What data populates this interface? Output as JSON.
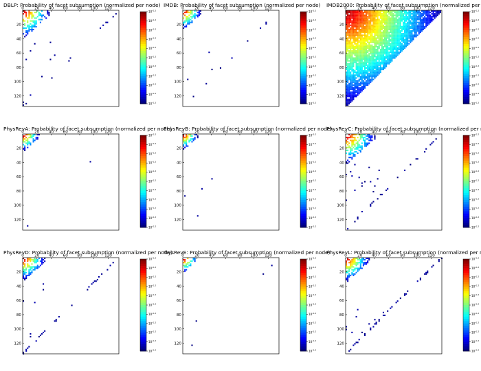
{
  "chart_data": [
    {
      "type": "heatmap",
      "title": "DBLP: Probability of facet subsumption (normalized per node)",
      "x_ticks": [
        "0",
        "20",
        "40",
        "60",
        "80",
        "100",
        "120"
      ],
      "y_ticks": [
        "20",
        "40",
        "60",
        "80",
        "100",
        "120"
      ],
      "xlim": [
        0,
        135
      ],
      "ylim": [
        0,
        135
      ],
      "colorbar": {
        "scale": "log",
        "colormap": "jet",
        "tick_exponent": "-0.2"
      },
      "extent": 37,
      "density": 0.45,
      "scatter": 0.02
    },
    {
      "type": "heatmap",
      "title": "IMDB: Probability of facet subsumption (normalized per node)",
      "x_ticks": [
        "0",
        "20",
        "40",
        "60",
        "80",
        "100",
        "120"
      ],
      "y_ticks": [
        "20",
        "40",
        "60",
        "80",
        "100",
        "120"
      ],
      "xlim": [
        0,
        135
      ],
      "ylim": [
        0,
        135
      ],
      "colorbar": {
        "scale": "log",
        "colormap": "jet",
        "tick_exponent": "-0.2"
      },
      "extent": 25,
      "density": 0.55,
      "scatter": 0.01
    },
    {
      "type": "heatmap",
      "title": "IMDB2000: Probability of facet subsumption (normalized per node)",
      "x_ticks": [
        "0",
        "20",
        "40",
        "60",
        "80",
        "100",
        "120"
      ],
      "y_ticks": [
        "20",
        "40",
        "60",
        "80",
        "100",
        "120"
      ],
      "xlim": [
        0,
        135
      ],
      "ylim": [
        0,
        135
      ],
      "colorbar": {
        "scale": "log",
        "colormap": "jet",
        "tick_exponent": "-0.2"
      },
      "extent": 133,
      "density": 0.92,
      "scatter": 0.0
    },
    {
      "type": "heatmap",
      "title": "PhysRevA: Probability of facet subsumption (normalized per node)",
      "x_ticks": [
        "0",
        "20",
        "40",
        "60",
        "80",
        "100",
        "120"
      ],
      "y_ticks": [
        "20",
        "40",
        "60",
        "80",
        "100",
        "120"
      ],
      "xlim": [
        0,
        135
      ],
      "ylim": [
        0,
        135
      ],
      "colorbar": {
        "scale": "log",
        "colormap": "jet",
        "tick_exponent": "-0.2"
      },
      "extent": 22,
      "density": 0.6,
      "scatter": 0.005
    },
    {
      "type": "heatmap",
      "title": "PhysRevB: Probability of facet subsumption (normalized per node)",
      "x_ticks": [
        "0",
        "20",
        "40",
        "60",
        "80",
        "100",
        "120"
      ],
      "y_ticks": [
        "20",
        "40",
        "60",
        "80",
        "100",
        "120"
      ],
      "xlim": [
        0,
        135
      ],
      "ylim": [
        0,
        135
      ],
      "colorbar": {
        "scale": "log",
        "colormap": "jet",
        "tick_exponent": "-0.2"
      },
      "extent": 20,
      "density": 0.55,
      "scatter": 0.005
    },
    {
      "type": "heatmap",
      "title": "PhysRevC: Probability of facet subsumption (normalized per node)",
      "x_ticks": [
        "0",
        "20",
        "40",
        "60",
        "80",
        "100",
        "120"
      ],
      "y_ticks": [
        "20",
        "40",
        "60",
        "80",
        "100",
        "120"
      ],
      "xlim": [
        0,
        135
      ],
      "ylim": [
        0,
        135
      ],
      "colorbar": {
        "scale": "log",
        "colormap": "jet",
        "tick_exponent": "-0.2"
      },
      "extent": 40,
      "density": 0.55,
      "scatter": 0.03
    },
    {
      "type": "heatmap",
      "title": "PhysRevD: Probability of facet subsumption (normalized per node)",
      "x_ticks": [
        "0",
        "20",
        "40",
        "60",
        "80",
        "100",
        "120"
      ],
      "y_ticks": [
        "20",
        "40",
        "60",
        "80",
        "100",
        "120"
      ],
      "xlim": [
        0,
        135
      ],
      "ylim": [
        0,
        135
      ],
      "colorbar": {
        "scale": "log",
        "colormap": "jet",
        "tick_exponent": "-0.2"
      },
      "extent": 30,
      "density": 0.55,
      "scatter": 0.04
    },
    {
      "type": "heatmap",
      "title": "'hysRevE: Probability of facet subsumption (normalized per node)",
      "x_ticks": [
        "0",
        "20",
        "40",
        "60",
        "80",
        "100",
        "120"
      ],
      "y_ticks": [
        "20",
        "40",
        "60",
        "80",
        "100",
        "120"
      ],
      "xlim": [
        0,
        135
      ],
      "ylim": [
        0,
        135
      ],
      "colorbar": {
        "scale": "log",
        "colormap": "jet",
        "tick_exponent": "-0.2"
      },
      "extent": 18,
      "density": 0.5,
      "scatter": 0.004
    },
    {
      "type": "heatmap",
      "title": "PhysRevL: Probability of facet subsumption (normalized per node)",
      "x_ticks": [
        "0",
        "20",
        "40",
        "60",
        "80",
        "100",
        "120"
      ],
      "y_ticks": [
        "20",
        "40",
        "60",
        "80",
        "100",
        "120"
      ],
      "xlim": [
        0,
        135
      ],
      "ylim": [
        0,
        135
      ],
      "colorbar": {
        "scale": "log",
        "colormap": "jet",
        "tick_exponent": "-0.2"
      },
      "extent": 32,
      "density": 0.6,
      "scatter": 0.05
    }
  ]
}
